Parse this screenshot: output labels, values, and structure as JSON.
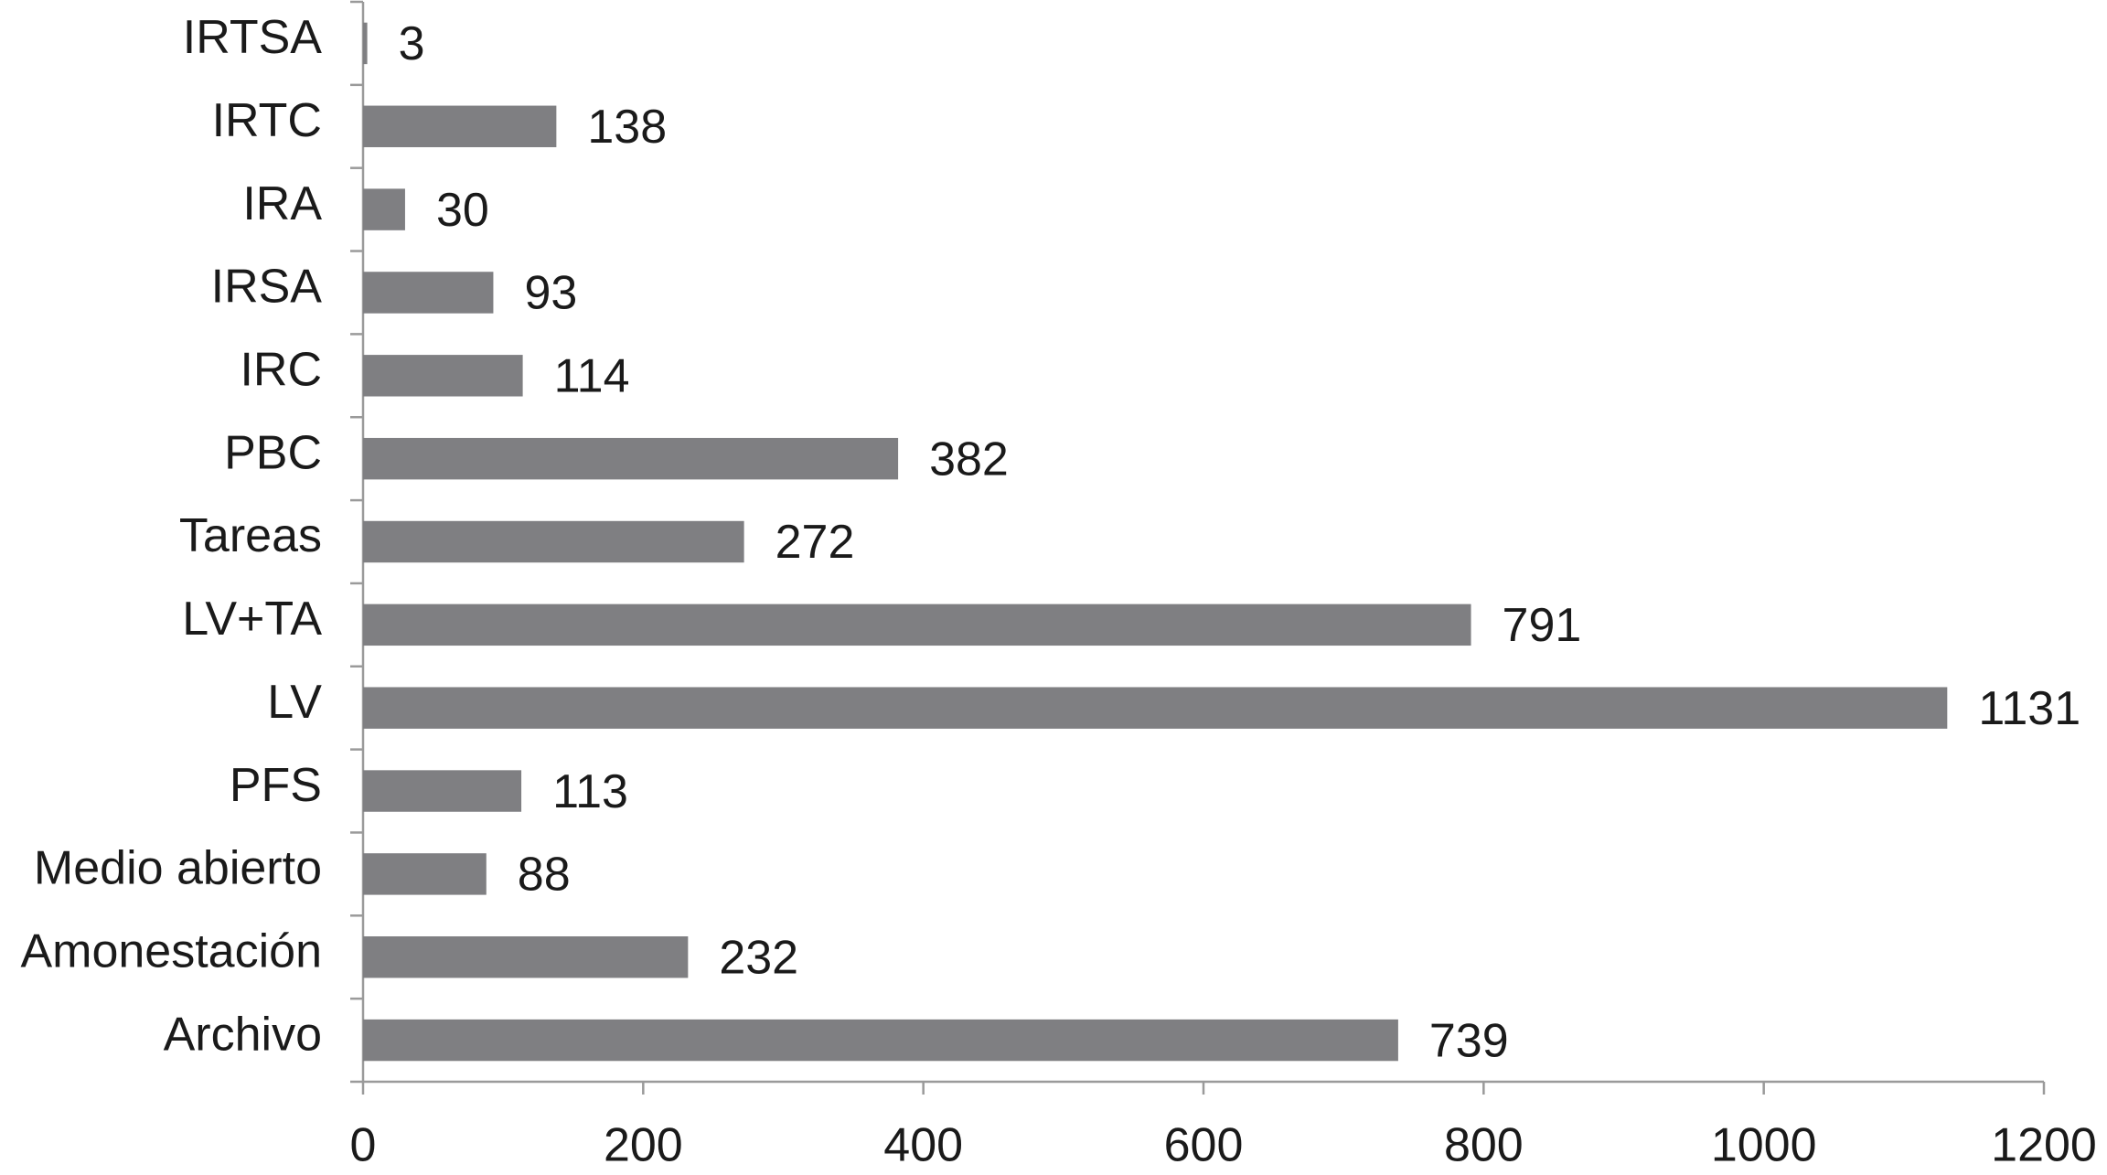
{
  "chart_data": {
    "type": "bar",
    "orientation": "horizontal",
    "categories": [
      "IRTSA",
      "IRTC",
      "IRA",
      "IRSA",
      "IRC",
      "PBC",
      "Tareas",
      "LV+TA",
      "LV",
      "PFS",
      "Medio abierto",
      "Amonestación",
      "Archivo"
    ],
    "values": [
      3,
      138,
      30,
      93,
      114,
      382,
      272,
      791,
      1131,
      113,
      88,
      232,
      739
    ],
    "color": "#7f7f82",
    "xlim": [
      0,
      1200
    ],
    "xticks": [
      0,
      200,
      400,
      600,
      800,
      1000,
      1200
    ],
    "grid": false
  }
}
